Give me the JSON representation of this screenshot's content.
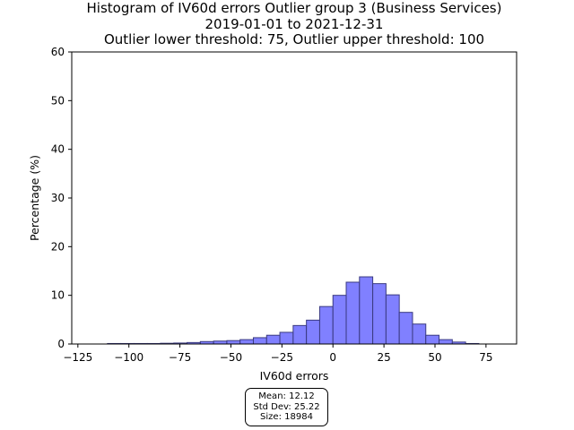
{
  "chart_data": {
    "type": "bar",
    "title": [
      "Histogram of IV60d errors Outlier group 3 (Business Services)",
      "2019-01-01 to 2021-12-31",
      "Outlier lower threshold: 75, Outlier upper threshold: 100"
    ],
    "xlabel": "IV60d errors",
    "ylabel": "Percentage (%)",
    "xlim": [
      -128,
      90
    ],
    "ylim": [
      0,
      60
    ],
    "xticks": [
      -125,
      -100,
      -75,
      -50,
      -25,
      0,
      25,
      50,
      75
    ],
    "yticks": [
      0,
      10,
      20,
      30,
      40,
      50,
      60
    ],
    "bin_width": 6.5,
    "bins": [
      {
        "x0": -110.5,
        "value": 0.1
      },
      {
        "x0": -104.0,
        "value": 0.1
      },
      {
        "x0": -97.5,
        "value": 0.1
      },
      {
        "x0": -91.0,
        "value": 0.1
      },
      {
        "x0": -84.5,
        "value": 0.15
      },
      {
        "x0": -78.0,
        "value": 0.2
      },
      {
        "x0": -71.5,
        "value": 0.3
      },
      {
        "x0": -65.0,
        "value": 0.5
      },
      {
        "x0": -58.5,
        "value": 0.6
      },
      {
        "x0": -52.0,
        "value": 0.7
      },
      {
        "x0": -45.5,
        "value": 0.9
      },
      {
        "x0": -39.0,
        "value": 1.3
      },
      {
        "x0": -32.5,
        "value": 1.8
      },
      {
        "x0": -26.0,
        "value": 2.4
      },
      {
        "x0": -19.5,
        "value": 3.8
      },
      {
        "x0": -13.0,
        "value": 4.9
      },
      {
        "x0": -6.5,
        "value": 7.7
      },
      {
        "x0": 0.0,
        "value": 10.0
      },
      {
        "x0": 6.5,
        "value": 12.7
      },
      {
        "x0": 13.0,
        "value": 13.8
      },
      {
        "x0": 19.5,
        "value": 12.4
      },
      {
        "x0": 26.0,
        "value": 10.1
      },
      {
        "x0": 32.5,
        "value": 6.5
      },
      {
        "x0": 39.0,
        "value": 4.1
      },
      {
        "x0": 45.5,
        "value": 1.8
      },
      {
        "x0": 52.0,
        "value": 0.9
      },
      {
        "x0": 58.5,
        "value": 0.4
      },
      {
        "x0": 65.0,
        "value": 0.1
      }
    ],
    "bar_color": "#8080ff",
    "edge_color": "#3a3a80",
    "grid": false,
    "stats": {
      "mean": "Mean: 12.12",
      "std": "Std Dev: 25.22",
      "size": "Size: 18984"
    }
  }
}
